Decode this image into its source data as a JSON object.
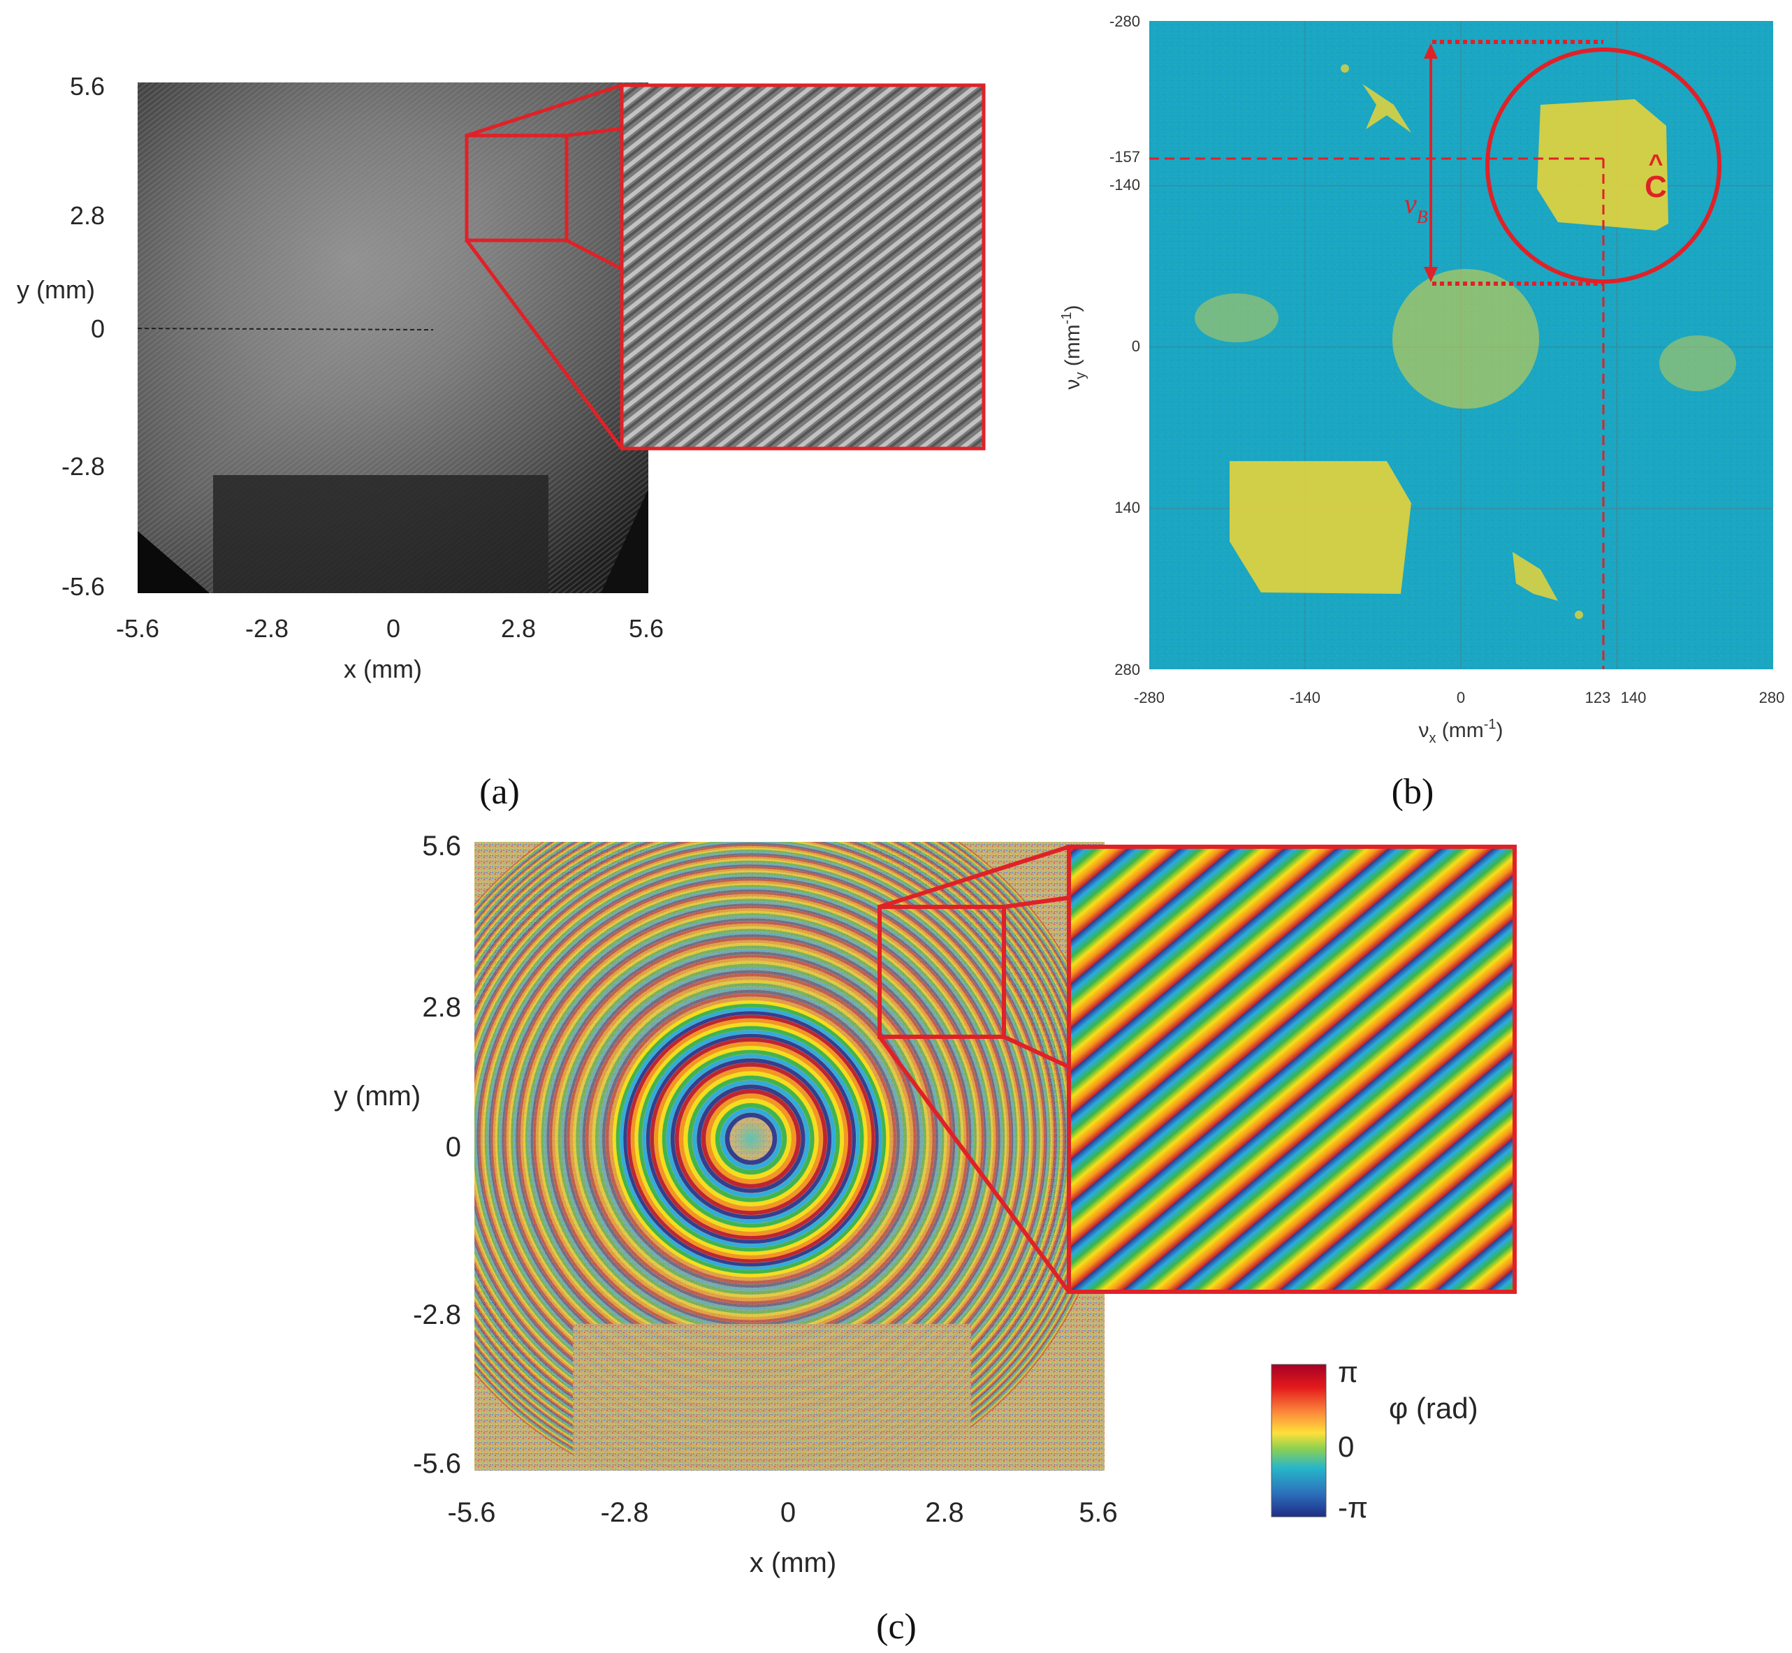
{
  "panels": {
    "a": {
      "label": "(a)",
      "xlabel": "x (mm)",
      "ylabel": "y (mm)",
      "xticks": [
        "-5.6",
        "-2.8",
        "0",
        "2.8",
        "5.6"
      ],
      "yticks": [
        "5.6",
        "2.8",
        "0",
        "-2.8",
        "-5.6"
      ]
    },
    "b": {
      "label": "(b)",
      "xlabel_main": "ν",
      "xlabel_sub": "x",
      "xlabel_unit": " (mm",
      "xlabel_exp": "-1",
      "xlabel_close": ")",
      "ylabel_main": "ν",
      "ylabel_sub": "y",
      "ylabel_unit": " (mm",
      "ylabel_exp": "-1",
      "ylabel_close": ")",
      "xticks": [
        "-280",
        "-140",
        "0",
        "123",
        "140",
        "280"
      ],
      "yticks": [
        "-280",
        "-157",
        "-140",
        "0",
        "140",
        "280"
      ],
      "annotation_nu": "ν",
      "annotation_nu_sub": "B",
      "annotation_c": "C",
      "annotation_c_hat": "^"
    },
    "c": {
      "label": "(c)",
      "xlabel": "x (mm)",
      "ylabel": "y (mm)",
      "xticks": [
        "-5.6",
        "-2.8",
        "0",
        "2.8",
        "5.6"
      ],
      "yticks": [
        "5.6",
        "2.8",
        "0",
        "-2.8",
        "-5.6"
      ],
      "colorbar_label": "φ (rad)",
      "colorbar_ticks": [
        "π",
        "0",
        "-π"
      ]
    }
  },
  "colors": {
    "highlight": "#e02127",
    "spectrum_bg": "#1aa6c4",
    "spectrum_peak": "#e6d33a"
  }
}
